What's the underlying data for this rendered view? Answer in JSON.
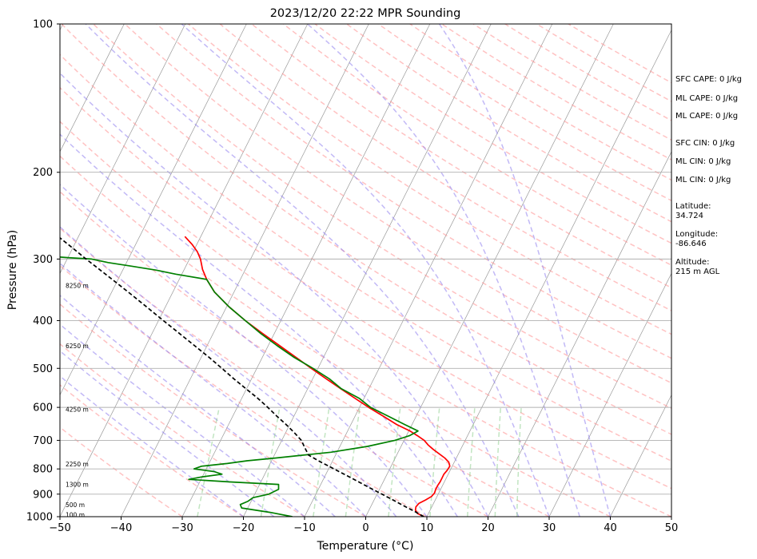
{
  "chart_data": {
    "type": "line",
    "title": "2023/12/20 22:22 MPR Sounding",
    "xlabel": "Temperature (°C)",
    "ylabel": "Pressure (hPa)",
    "xlim": [
      -50,
      50
    ],
    "ylim": [
      1000,
      100
    ],
    "yscale": "log",
    "skew": "skew-T log-P",
    "xticks": [
      -50,
      -40,
      -30,
      -20,
      -10,
      0,
      10,
      20,
      30,
      40,
      50
    ],
    "yticks": [
      100,
      200,
      300,
      400,
      500,
      600,
      700,
      800,
      900,
      1000
    ],
    "grid": true,
    "colors": {
      "temperature": "#ff0000",
      "dewpoint": "#008000",
      "parcel": "#000000",
      "dry_adiabat": "#ff9090",
      "moist_adiabat": "#8f7fef",
      "mixing_ratio": "#8fcf8f",
      "isotherm": "#999999"
    },
    "series": [
      {
        "key": "temperature",
        "pressure": [
          1000,
          985,
          970,
          955,
          940,
          925,
          910,
          895,
          880,
          865,
          850,
          835,
          820,
          805,
          790,
          775,
          760,
          745,
          730,
          715,
          700,
          685,
          670,
          650,
          625,
          600,
          575,
          550,
          525,
          500,
          475,
          450,
          425,
          400,
          375,
          350,
          330,
          315,
          300,
          290,
          280,
          270
        ],
        "values": [
          9.5,
          8.2,
          7.6,
          7.4,
          7.6,
          8.4,
          9.1,
          9.3,
          9.2,
          9.2,
          9.3,
          9.3,
          9.3,
          9.5,
          9.6,
          9.1,
          8.1,
          6.8,
          5.5,
          4.3,
          3.3,
          1.8,
          0.2,
          -2.5,
          -5.4,
          -8.5,
          -11.5,
          -14.6,
          -17.8,
          -21.1,
          -24.5,
          -28.1,
          -31.9,
          -35.8,
          -39.6,
          -43.2,
          -45.5,
          -47.0,
          -48.2,
          -49.3,
          -50.8,
          -52.6
        ]
      },
      {
        "key": "dewpoint",
        "pressure": [
          1000,
          980,
          960,
          945,
          930,
          915,
          900,
          880,
          860,
          850,
          840,
          830,
          820,
          810,
          800,
          790,
          780,
          770,
          760,
          740,
          720,
          700,
          685,
          670,
          650,
          625,
          600,
          575,
          550,
          525,
          500,
          475,
          450,
          425,
          400,
          375,
          350,
          330,
          322,
          316,
          310,
          305,
          300,
          298,
          295,
          292,
          290
        ],
        "values": [
          -12.0,
          -16.0,
          -21.0,
          -21.5,
          -20.5,
          -20.0,
          -17.7,
          -16.5,
          -16.9,
          -25.0,
          -32.0,
          -30.0,
          -27.0,
          -28.5,
          -32.0,
          -31.0,
          -27.0,
          -24.0,
          -19.5,
          -11.0,
          -5.5,
          -1.5,
          0.5,
          1.5,
          -1.2,
          -4.6,
          -8.2,
          -10.8,
          -14.5,
          -17.3,
          -20.8,
          -24.8,
          -28.5,
          -32.2,
          -35.8,
          -39.6,
          -43.2,
          -45.5,
          -51.0,
          -54.5,
          -59.0,
          -63.0,
          -66.0,
          -70.0,
          -75.0,
          -80.0,
          -84.0
        ]
      },
      {
        "key": "parcel",
        "pressure": [
          1000,
          975,
          950,
          925,
          900,
          875,
          850,
          825,
          800,
          775,
          750,
          725,
          700,
          675,
          650,
          625,
          600,
          575,
          550,
          525,
          500,
          475,
          450,
          425,
          400,
          375,
          350,
          325,
          300,
          285,
          270
        ],
        "values": [
          9.5,
          7.5,
          5.3,
          3.1,
          0.8,
          -1.6,
          -4.0,
          -6.5,
          -9.1,
          -11.8,
          -14.4,
          -15.6,
          -16.8,
          -18.6,
          -20.6,
          -22.8,
          -25.0,
          -27.4,
          -30.1,
          -32.9,
          -35.7,
          -38.7,
          -42.0,
          -45.5,
          -49.2,
          -53.1,
          -57.3,
          -61.9,
          -66.9,
          -70.0,
          -73.3
        ]
      }
    ],
    "height_labels": [
      "100 m",
      "500 m",
      "1300 m",
      "2250 m",
      "4250 m",
      "6250 m",
      "8250 m"
    ],
    "height_label_pressures": [
      993,
      948,
      862,
      783,
      606,
      451,
      340
    ]
  },
  "stats": [
    "SFC CAPE: 0 J/kg",
    "ML CAPE: 0 J/kg",
    "ML CAPE: 0 J/kg",
    "SFC CIN: 0 J/kg",
    "ML CIN: 0 J/kg",
    "ML CIN: 0 J/kg",
    "Latitude:",
    "34.724",
    "Longitude:",
    "-86.646",
    "Altitude:",
    "215 m AGL"
  ]
}
